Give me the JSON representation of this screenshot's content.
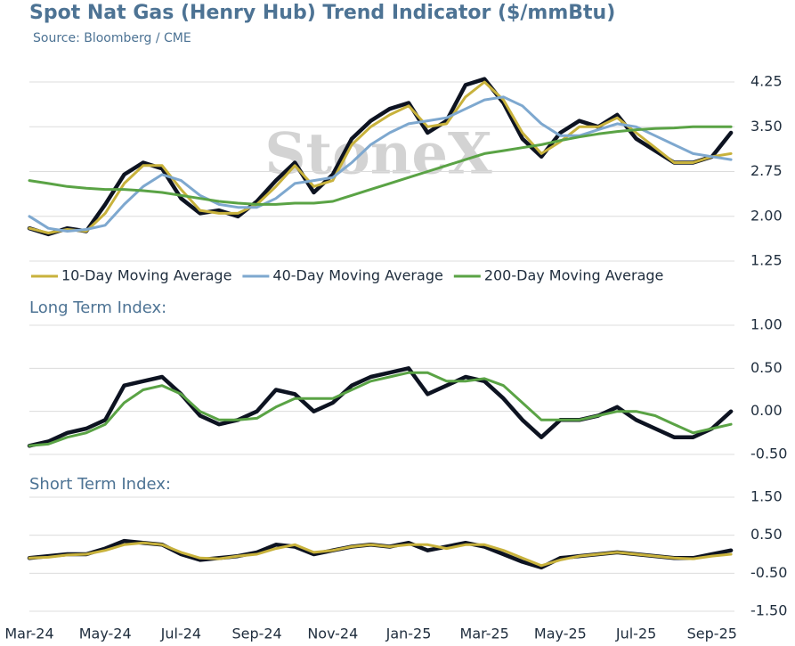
{
  "title": "Spot Nat Gas (Henry Hub) Trend Indicator ($/mmBtu)",
  "source": "Source: Bloomberg / CME",
  "watermark": "StoneX",
  "chart_data": [
    {
      "type": "line",
      "ylim": [
        1.25,
        4.6
      ],
      "yticks": [
        {
          "value": 4.25,
          "label": "4.25"
        },
        {
          "value": 3.5,
          "label": "3.50"
        },
        {
          "value": 2.75,
          "label": "2.75"
        },
        {
          "value": 2.0,
          "label": "2.00"
        },
        {
          "value": 1.25,
          "label": "1.25"
        }
      ],
      "grid": true,
      "legend": "bottom",
      "series": [
        {
          "color": "#0d1321",
          "values": [
            1.8,
            1.7,
            1.8,
            1.75,
            2.2,
            2.7,
            2.9,
            2.8,
            2.3,
            2.05,
            2.1,
            2.0,
            2.25,
            2.6,
            2.9,
            2.4,
            2.7,
            3.3,
            3.6,
            3.8,
            3.9,
            3.4,
            3.6,
            4.2,
            4.3,
            3.9,
            3.3,
            3.0,
            3.4,
            3.6,
            3.5,
            3.7,
            3.3,
            3.1,
            2.9,
            2.9,
            3.0,
            3.4
          ]
        },
        {
          "name": "10-Day Moving Average",
          "color": "#c8b23c",
          "values": [
            1.8,
            1.72,
            1.78,
            1.75,
            2.05,
            2.55,
            2.85,
            2.85,
            2.45,
            2.1,
            2.05,
            2.05,
            2.2,
            2.5,
            2.85,
            2.5,
            2.6,
            3.2,
            3.5,
            3.7,
            3.85,
            3.5,
            3.55,
            4.0,
            4.25,
            3.95,
            3.4,
            3.05,
            3.25,
            3.5,
            3.5,
            3.65,
            3.4,
            3.15,
            2.9,
            2.9,
            3.0,
            3.05
          ]
        },
        {
          "name": "40-Day Moving Average",
          "color": "#7ea8cf",
          "values": [
            2.0,
            1.8,
            1.75,
            1.78,
            1.85,
            2.2,
            2.5,
            2.7,
            2.6,
            2.35,
            2.2,
            2.15,
            2.15,
            2.3,
            2.55,
            2.6,
            2.65,
            2.9,
            3.2,
            3.4,
            3.55,
            3.6,
            3.65,
            3.8,
            3.95,
            4.0,
            3.85,
            3.55,
            3.35,
            3.35,
            3.45,
            3.55,
            3.5,
            3.35,
            3.2,
            3.05,
            3.0,
            2.95
          ]
        },
        {
          "name": "200-Day Moving Average",
          "color": "#5aa345",
          "values": [
            2.6,
            2.55,
            2.5,
            2.47,
            2.45,
            2.45,
            2.43,
            2.4,
            2.35,
            2.3,
            2.25,
            2.22,
            2.2,
            2.2,
            2.22,
            2.22,
            2.25,
            2.35,
            2.45,
            2.55,
            2.65,
            2.75,
            2.85,
            2.95,
            3.05,
            3.1,
            3.15,
            3.2,
            3.27,
            3.33,
            3.38,
            3.42,
            3.45,
            3.47,
            3.48,
            3.5,
            3.5,
            3.5
          ]
        }
      ]
    },
    {
      "type": "line",
      "title": "Long Term Index:",
      "ylim": [
        -0.5,
        1.0
      ],
      "yticks": [
        {
          "value": 1.0,
          "label": "1.00"
        },
        {
          "value": 0.5,
          "label": "0.50"
        },
        {
          "value": 0,
          "label": "0.00"
        },
        {
          "value": -0.5,
          "label": "-0.50"
        }
      ],
      "grid": true,
      "series": [
        {
          "color": "#0d1321",
          "values": [
            -0.4,
            -0.35,
            -0.25,
            -0.2,
            -0.1,
            0.3,
            0.35,
            0.4,
            0.2,
            -0.05,
            -0.15,
            -0.1,
            0.0,
            0.25,
            0.2,
            0.0,
            0.1,
            0.3,
            0.4,
            0.45,
            0.5,
            0.2,
            0.3,
            0.4,
            0.35,
            0.15,
            -0.1,
            -0.3,
            -0.1,
            -0.1,
            -0.05,
            0.05,
            -0.1,
            -0.2,
            -0.3,
            -0.3,
            -0.2,
            0.0
          ]
        },
        {
          "color": "#5aa345",
          "values": [
            -0.4,
            -0.38,
            -0.3,
            -0.25,
            -0.15,
            0.1,
            0.25,
            0.3,
            0.2,
            0.0,
            -0.1,
            -0.1,
            -0.08,
            0.05,
            0.15,
            0.15,
            0.15,
            0.25,
            0.35,
            0.4,
            0.45,
            0.45,
            0.35,
            0.35,
            0.38,
            0.3,
            0.1,
            -0.1,
            -0.1,
            -0.1,
            -0.05,
            0.0,
            0.0,
            -0.05,
            -0.15,
            -0.25,
            -0.2,
            -0.15
          ]
        }
      ]
    },
    {
      "type": "line",
      "title": "Short Term Index:",
      "ylim": [
        -1.5,
        1.5
      ],
      "yticks": [
        {
          "value": 1.5,
          "label": "1.50"
        },
        {
          "value": 0.5,
          "label": "0.50"
        },
        {
          "value": -0.5,
          "label": "-0.50"
        },
        {
          "value": -1.5,
          "label": "-1.50"
        }
      ],
      "grid": true,
      "categories": [
        "Mar-24",
        null,
        null,
        null,
        "May-24",
        null,
        null,
        null,
        "Jul-24",
        null,
        null,
        null,
        "Sep-24",
        null,
        null,
        null,
        "Nov-24",
        null,
        null,
        null,
        "Jan-25",
        null,
        null,
        null,
        "Mar-25",
        null,
        null,
        null,
        "May-25",
        null,
        null,
        null,
        "Jul-25",
        null,
        null,
        null,
        "Sep-25",
        null
      ],
      "series": [
        {
          "color": "#0d1321",
          "values": [
            -0.1,
            -0.05,
            0.0,
            0.0,
            0.15,
            0.35,
            0.3,
            0.25,
            0.0,
            -0.15,
            -0.1,
            -0.05,
            0.05,
            0.25,
            0.2,
            0.0,
            0.1,
            0.2,
            0.25,
            0.2,
            0.3,
            0.1,
            0.2,
            0.3,
            0.2,
            0.0,
            -0.2,
            -0.35,
            -0.1,
            -0.05,
            0.0,
            0.05,
            0.0,
            -0.05,
            -0.1,
            -0.1,
            0.0,
            0.1
          ]
        },
        {
          "color": "#c8b23c",
          "values": [
            -0.1,
            -0.08,
            -0.02,
            0.0,
            0.1,
            0.25,
            0.3,
            0.25,
            0.05,
            -0.1,
            -0.12,
            -0.05,
            0.0,
            0.15,
            0.25,
            0.05,
            0.1,
            0.2,
            0.25,
            0.2,
            0.25,
            0.25,
            0.15,
            0.25,
            0.25,
            0.1,
            -0.1,
            -0.3,
            -0.15,
            -0.05,
            0.0,
            0.05,
            0.0,
            -0.05,
            -0.1,
            -0.12,
            -0.05,
            0.0
          ]
        }
      ]
    }
  ]
}
